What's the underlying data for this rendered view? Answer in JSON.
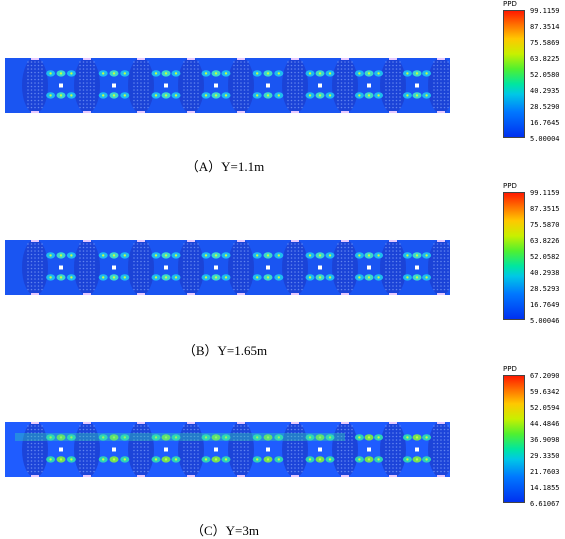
{
  "panels": [
    {
      "caption": "（A）Y=1.1m",
      "legend": {
        "title": "PPD",
        "labels": [
          "99.1159",
          "87.3514",
          "75.5869",
          "63.8225",
          "52.0580",
          "40.2935",
          "28.5290",
          "16.7645",
          "5.00004"
        ]
      }
    },
    {
      "caption": "（B）Y=1.65m",
      "legend": {
        "title": "PPD",
        "labels": [
          "99.1159",
          "87.3515",
          "75.5870",
          "63.8226",
          "52.0582",
          "40.2938",
          "28.5293",
          "16.7649",
          "5.00046"
        ]
      }
    },
    {
      "caption": "（C）Y=3m",
      "legend": {
        "title": "PPD",
        "labels": [
          "67.2090",
          "59.6342",
          "52.0594",
          "44.4846",
          "36.9098",
          "29.3350",
          "21.7603",
          "14.1855",
          "6.61067"
        ]
      }
    }
  ]
}
